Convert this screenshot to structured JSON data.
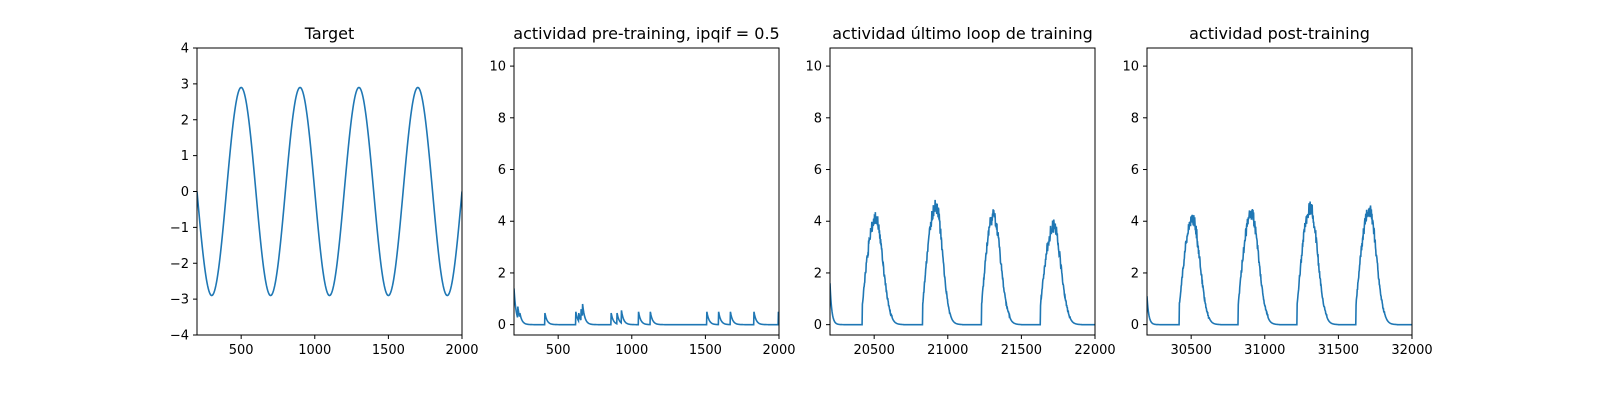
{
  "colors": {
    "line": "#1f77b4",
    "axes": "#000000",
    "background": "#ffffff"
  },
  "chart_data": [
    {
      "type": "line",
      "title": "Target",
      "xlim": [
        200,
        2000
      ],
      "ylim": [
        -4,
        4
      ],
      "xticks": [
        500,
        1000,
        1500,
        2000
      ],
      "yticks": [
        -4,
        -3,
        -2,
        -1,
        0,
        1,
        2,
        3,
        4
      ],
      "xtick_labels": [
        "500",
        "1000",
        "1500",
        "2000"
      ],
      "ytick_labels": [
        "−4",
        "−3",
        "−2",
        "−1",
        "0",
        "1",
        "2",
        "3",
        "4"
      ],
      "grid": false,
      "series": [
        {
          "kind": "sine",
          "amplitude": 2.9,
          "period": 400,
          "x_start": 200,
          "x_end": 2000,
          "x_first_trough": 300
        }
      ]
    },
    {
      "type": "line",
      "title": "actividad pre-training, ipqif = 0.5",
      "xlim": [
        200,
        2000
      ],
      "ylim": [
        -0.4,
        10.7
      ],
      "xticks": [
        500,
        1000,
        1500,
        2000
      ],
      "yticks": [
        0,
        2,
        4,
        6,
        8,
        10
      ],
      "xtick_labels": [
        "500",
        "1000",
        "1500",
        "2000"
      ],
      "ytick_labels": [
        "0",
        "2",
        "4",
        "6",
        "8",
        "10"
      ],
      "grid": false,
      "series": [
        {
          "kind": "decay",
          "initial": 1.6,
          "x_start": 200,
          "x_end": 2000,
          "tau": 15,
          "spikes": [
            [
              225,
              0.7
            ],
            [
              240,
              0.45
            ],
            [
              410,
              0.45
            ],
            [
              620,
              0.5
            ],
            [
              640,
              0.45
            ],
            [
              655,
              0.6
            ],
            [
              665,
              0.8
            ],
            [
              860,
              0.45
            ],
            [
              900,
              0.45
            ],
            [
              930,
              0.55
            ],
            [
              1045,
              0.5
            ],
            [
              1125,
              0.5
            ],
            [
              1510,
              0.5
            ],
            [
              1590,
              0.5
            ],
            [
              1670,
              0.5
            ],
            [
              1830,
              0.5
            ],
            [
              1995,
              0.5
            ]
          ]
        }
      ]
    },
    {
      "type": "line",
      "title": "actividad último loop de training",
      "xlim": [
        20200,
        22000
      ],
      "ylim": [
        -0.4,
        10.7
      ],
      "xticks": [
        20500,
        21000,
        21500,
        22000
      ],
      "yticks": [
        0,
        2,
        4,
        6,
        8,
        10
      ],
      "xtick_labels": [
        "20500",
        "21000",
        "21500",
        "22000"
      ],
      "ytick_labels": [
        "0",
        "2",
        "4",
        "6",
        "8",
        "10"
      ],
      "grid": false,
      "series": [
        {
          "kind": "bumps",
          "initial": 1.6,
          "x_start": 20200,
          "x_end": 22000,
          "bumps": [
            {
              "start": 20420,
              "peak_x": 20510,
              "peak": 4.1,
              "end": 20620
            },
            {
              "start": 20830,
              "peak_x": 20920,
              "peak": 4.6,
              "end": 21020
            },
            {
              "start": 21230,
              "peak_x": 21310,
              "peak": 4.2,
              "end": 21420
            },
            {
              "start": 21630,
              "peak_x": 21720,
              "peak": 3.8,
              "end": 21830
            }
          ]
        }
      ]
    },
    {
      "type": "line",
      "title": "actividad post-training",
      "xlim": [
        30200,
        32000
      ],
      "ylim": [
        -0.4,
        10.7
      ],
      "xticks": [
        30500,
        31000,
        31500,
        32000
      ],
      "yticks": [
        0,
        2,
        4,
        6,
        8,
        10
      ],
      "xtick_labels": [
        "30500",
        "31000",
        "31500",
        "32000"
      ],
      "ytick_labels": [
        "0",
        "2",
        "4",
        "6",
        "8",
        "10"
      ],
      "grid": false,
      "series": [
        {
          "kind": "bumps",
          "initial": 1.1,
          "x_start": 30200,
          "x_end": 32000,
          "bumps": [
            {
              "start": 30420,
              "peak_x": 30510,
              "peak": 4.1,
              "end": 30620
            },
            {
              "start": 30820,
              "peak_x": 30910,
              "peak": 4.3,
              "end": 31020
            },
            {
              "start": 31220,
              "peak_x": 31310,
              "peak": 4.5,
              "end": 31420
            },
            {
              "start": 31620,
              "peak_x": 31710,
              "peak": 4.4,
              "end": 31820
            }
          ]
        }
      ]
    }
  ]
}
